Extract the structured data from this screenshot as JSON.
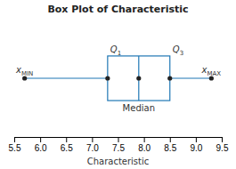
{
  "chart_data": {
    "type": "box",
    "orientation": "horizontal",
    "title": "Box Plot of Characteristic",
    "xlabel": "Characteristic",
    "xlim": [
      5.5,
      9.5
    ],
    "xticks": [
      5.5,
      {
        "value": 6.0,
        "label": "6.0"
      },
      6.5,
      {
        "value": 7.0,
        "label": "7.0"
      },
      7.5,
      {
        "value": 8.0,
        "label": "8.0"
      },
      8.5,
      {
        "value": 9.0,
        "label": "9.0"
      },
      9.5
    ],
    "tick_labels": "x",
    "grid": false,
    "boxes": [
      {
        "min": 5.7,
        "q1": 7.3,
        "median": 7.9,
        "q3": 8.5,
        "max": 9.3
      }
    ],
    "labels": {
      "min": {
        "text": "x",
        "subscript": "MIN"
      },
      "max": {
        "text": "x",
        "subscript": "MAX"
      },
      "q1": {
        "text": "Q",
        "subscript": "1"
      },
      "q3": {
        "text": "Q",
        "subscript": "3"
      },
      "median": {
        "text": "Median"
      }
    }
  }
}
